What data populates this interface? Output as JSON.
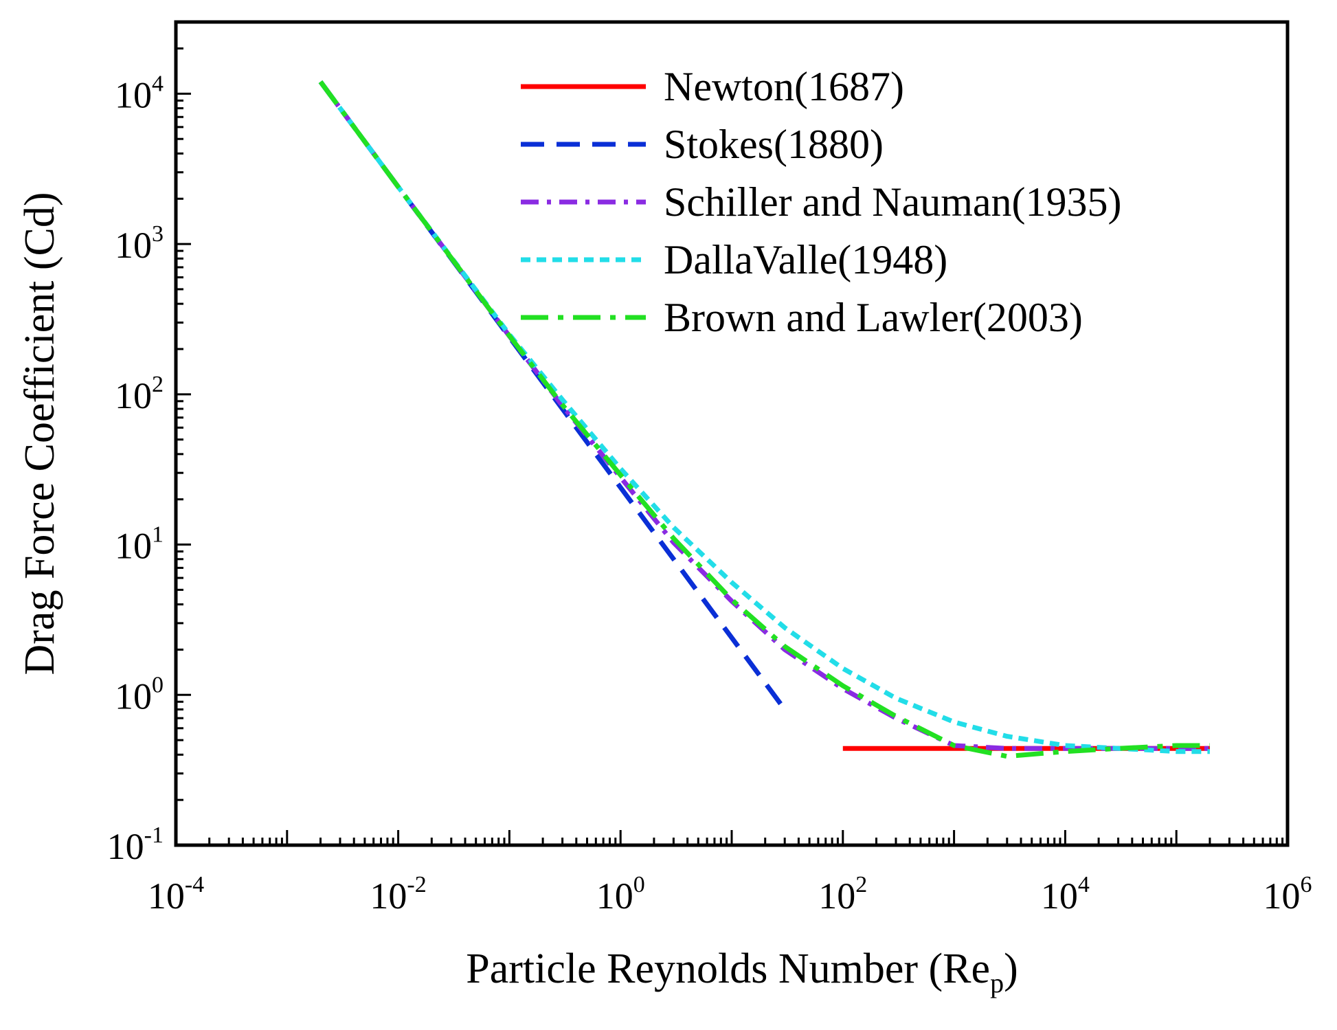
{
  "chart_data": {
    "type": "line",
    "title": "",
    "xlabel": "Particle Reynolds Number (Re",
    "xlabel_sub": "p",
    "xlabel_close": ")",
    "ylabel": "Drag Force Coefficient (Cd)",
    "xscale": "log",
    "yscale": "log",
    "xlim": [
      0.0001,
      1000000
    ],
    "ylim": [
      0.1,
      30000
    ],
    "legend_position": "top-right",
    "x_ticks": [
      {
        "value": 0.0001,
        "base": "10",
        "exp": "-4"
      },
      {
        "value": 0.01,
        "base": "10",
        "exp": "-2"
      },
      {
        "value": 1,
        "base": "10",
        "exp": "0"
      },
      {
        "value": 100,
        "base": "10",
        "exp": "2"
      },
      {
        "value": 10000,
        "base": "10",
        "exp": "4"
      },
      {
        "value": 1000000,
        "base": "10",
        "exp": "6"
      }
    ],
    "y_ticks": [
      {
        "value": 0.1,
        "base": "10",
        "exp": "-1"
      },
      {
        "value": 1,
        "base": "10",
        "exp": "0"
      },
      {
        "value": 10,
        "base": "10",
        "exp": "1"
      },
      {
        "value": 100,
        "base": "10",
        "exp": "2"
      },
      {
        "value": 1000,
        "base": "10",
        "exp": "3"
      },
      {
        "value": 10000,
        "base": "10",
        "exp": "4"
      }
    ],
    "series": [
      {
        "name": "Newton(1687)",
        "color": "#ff0000",
        "dash": "solid",
        "x": [
          100,
          200000
        ],
        "y": [
          0.44,
          0.44
        ]
      },
      {
        "name": "Stokes(1880)",
        "color": "#0a2fd6",
        "dash": "dash",
        "x": [
          0.002,
          0.01,
          0.1,
          1,
          10,
          30
        ],
        "y": [
          12000,
          2400,
          240,
          24,
          2.4,
          0.8
        ]
      },
      {
        "name": "Schiller and Nauman(1935)",
        "color": "#8a2be2",
        "dash": "dashdot",
        "x": [
          0.002,
          0.01,
          0.1,
          0.3,
          1,
          3,
          10,
          30,
          100,
          300,
          1000,
          3000,
          10000,
          100000,
          200000
        ],
        "y": [
          12000,
          2400,
          244,
          84,
          28,
          10.3,
          4.2,
          2.0,
          1.1,
          0.7,
          0.46,
          0.44,
          0.44,
          0.44,
          0.44
        ]
      },
      {
        "name": "DallaValle(1948)",
        "color": "#22dde8",
        "dash": "dot",
        "x": [
          0.002,
          0.01,
          0.1,
          0.3,
          1,
          3,
          10,
          30,
          100,
          300,
          1000,
          3000,
          10000,
          100000,
          200000
        ],
        "y": [
          12000,
          2400,
          250,
          92,
          32,
          13,
          5.6,
          2.8,
          1.5,
          0.95,
          0.66,
          0.53,
          0.46,
          0.42,
          0.42
        ]
      },
      {
        "name": "Brown and Lawler(2003)",
        "color": "#22e022",
        "dash": "longdashdot",
        "x": [
          0.002,
          0.01,
          0.1,
          0.3,
          1,
          3,
          10,
          30,
          100,
          300,
          1000,
          3000,
          10000,
          30000,
          100000,
          200000
        ],
        "y": [
          12000,
          2400,
          245,
          85,
          29,
          11,
          4.3,
          2.1,
          1.15,
          0.72,
          0.46,
          0.39,
          0.42,
          0.44,
          0.46,
          0.46
        ]
      }
    ]
  }
}
